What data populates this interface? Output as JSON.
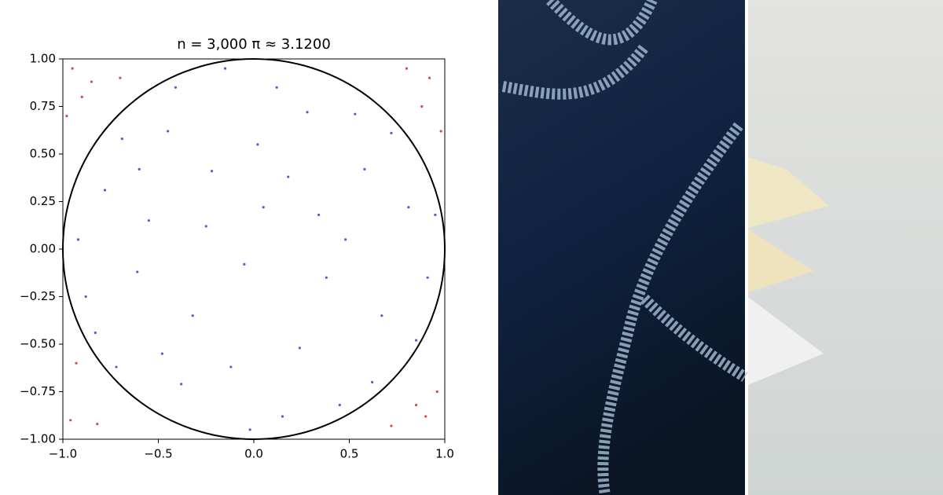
{
  "chart_data": {
    "type": "scatter",
    "title": "n = 3,000     π ≈ 3.1200",
    "xlim": [
      -1,
      1
    ],
    "ylim": [
      -1,
      1
    ],
    "xticks": [
      {
        "value": -1,
        "label": "−1.0"
      },
      {
        "value": -0.5,
        "label": "−0.5"
      },
      {
        "value": 0,
        "label": "0.0"
      },
      0.5,
      {
        "value": 1,
        "label": "1.0"
      }
    ],
    "yticks": [
      {
        "value": -1,
        "label": "−1.00"
      },
      {
        "value": -0.75,
        "label": "−0.75"
      },
      {
        "value": -0.5,
        "label": "−0.50"
      },
      {
        "value": -0.25,
        "label": "−0.25"
      },
      {
        "value": 0,
        "label": "0.00"
      },
      {
        "value": 0.25,
        "label": "0.25"
      },
      {
        "value": 0.5,
        "label": "0.50"
      },
      {
        "value": 0.75,
        "label": "0.75"
      },
      {
        "value": 1,
        "label": "1.00"
      }
    ],
    "series": [
      {
        "color": "#3b3bd1",
        "x": [
          0.12,
          -0.45,
          0.53,
          -0.78,
          0.81,
          -0.22,
          0.34,
          -0.61,
          0.67,
          -0.05,
          0.24,
          -0.38,
          0.45,
          -0.83,
          0.91,
          -0.15,
          0.02,
          -0.55,
          0.58,
          -0.32,
          0.15,
          -0.69,
          0.72,
          -0.92,
          0.38,
          -0.12,
          0.05,
          -0.41,
          0.28,
          0.85,
          -0.72,
          0.62,
          -0.25,
          0.48,
          -0.88,
          0.18,
          -0.6,
          0.95,
          -0.02,
          -0.48
        ],
        "y": [
          0.85,
          0.62,
          0.71,
          0.31,
          0.22,
          0.41,
          0.18,
          -0.12,
          -0.35,
          -0.08,
          -0.52,
          -0.71,
          -0.82,
          -0.44,
          -0.15,
          0.95,
          0.55,
          0.15,
          0.42,
          -0.35,
          -0.88,
          0.58,
          0.61,
          0.05,
          -0.15,
          -0.62,
          0.22,
          0.85,
          0.72,
          -0.48,
          -0.62,
          -0.7,
          0.12,
          0.05,
          -0.25,
          0.38,
          0.42,
          0.18,
          -0.95,
          -0.55
        ]
      },
      {
        "color": "#d62728",
        "x": [
          -0.95,
          -0.85,
          0.92,
          0.8,
          -0.96,
          -0.82,
          0.9,
          0.96,
          -0.98,
          0.98,
          -0.7,
          0.72,
          -0.93,
          0.88,
          -0.9,
          0.85
        ],
        "y": [
          0.95,
          0.88,
          0.9,
          0.95,
          -0.9,
          -0.92,
          -0.88,
          -0.75,
          0.7,
          0.62,
          0.9,
          -0.93,
          -0.6,
          0.75,
          0.8,
          -0.82
        ]
      }
    ]
  }
}
